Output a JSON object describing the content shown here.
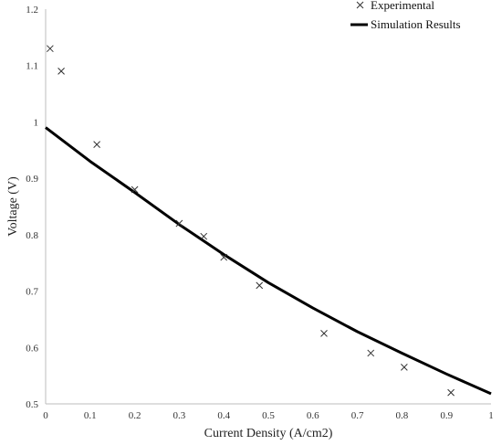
{
  "chart_data": {
    "type": "scatter",
    "xlabel": "Current Density (A/cm2)",
    "ylabel": "Voltage (V)",
    "xlim": [
      0,
      1
    ],
    "ylim": [
      0.5,
      1.2
    ],
    "xticks": [
      "0",
      "0.1",
      "0.2",
      "0.3",
      "0.4",
      "0.5",
      "0.6",
      "0.7",
      "0.8",
      "0.9",
      "1"
    ],
    "yticks": [
      "0.5",
      "0.6",
      "0.7",
      "0.8",
      "0.9",
      "1",
      "1.1",
      "1.2"
    ],
    "grid": false,
    "legend_position": "top-right",
    "series": [
      {
        "name": "Experimental",
        "type": "scatter",
        "marker": "x",
        "color": "#333333",
        "x": [
          0.01,
          0.035,
          0.115,
          0.2,
          0.3,
          0.355,
          0.4,
          0.48,
          0.625,
          0.73,
          0.805,
          0.91
        ],
        "y": [
          1.13,
          1.09,
          0.96,
          0.88,
          0.82,
          0.797,
          0.76,
          0.71,
          0.625,
          0.59,
          0.565,
          0.52
        ]
      },
      {
        "name": "Simulation Results",
        "type": "line",
        "color": "#000000",
        "x": [
          0,
          0.1,
          0.2,
          0.3,
          0.4,
          0.5,
          0.6,
          0.7,
          0.8,
          0.9,
          1.0
        ],
        "y": [
          0.99,
          0.93,
          0.875,
          0.818,
          0.765,
          0.715,
          0.67,
          0.628,
          0.59,
          0.553,
          0.518
        ]
      }
    ]
  }
}
